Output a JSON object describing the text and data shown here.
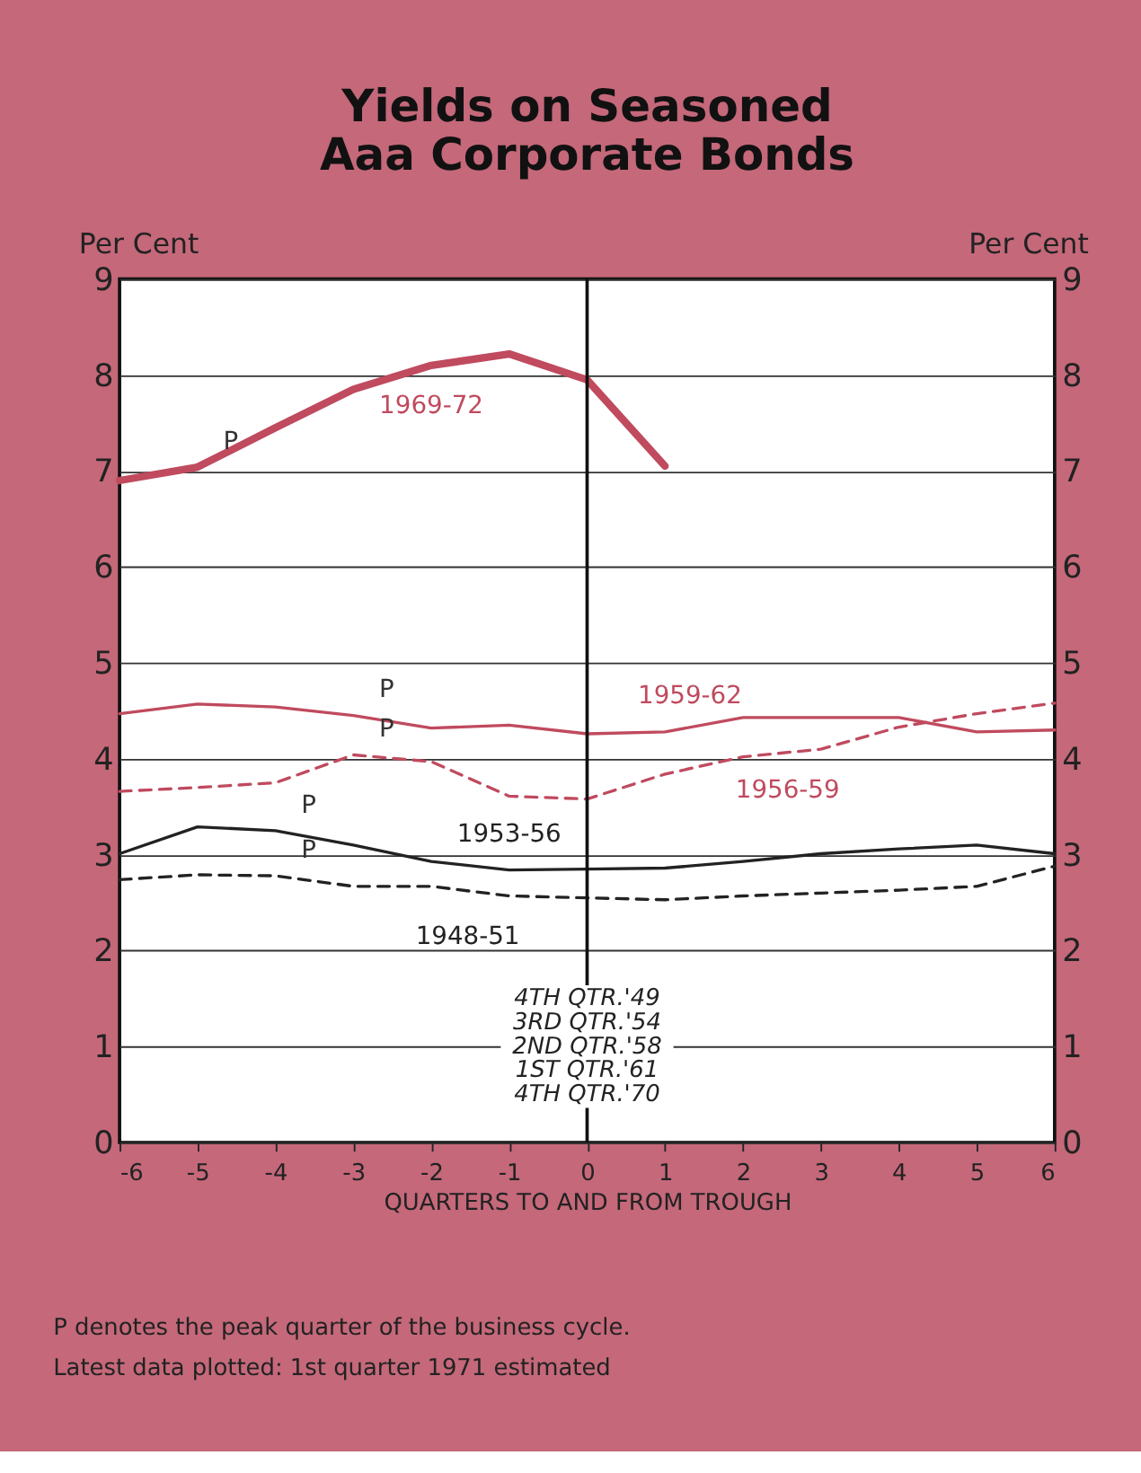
{
  "chart_data": {
    "type": "line",
    "title": "Yields on Seasoned\nAaa Corporate Bonds",
    "xlabel": "QUARTERS TO AND FROM TROUGH",
    "ylabel": "Per Cent",
    "y2label": "Per Cent",
    "x": [
      -6,
      -5,
      -4,
      -3,
      -2,
      -1,
      0,
      1,
      2,
      3,
      4,
      5,
      6
    ],
    "series": [
      {
        "name": "1969-72",
        "color": "#c04a5e",
        "line_style": "solid",
        "values": [
          6.9,
          7.04,
          7.45,
          7.85,
          8.1,
          8.22,
          7.95,
          7.05,
          null,
          null,
          null,
          null,
          null
        ]
      },
      {
        "name": "1959-62",
        "color": "#c04a5e",
        "line_style": "solid",
        "values": [
          4.47,
          4.57,
          4.54,
          4.45,
          4.32,
          4.35,
          4.26,
          4.28,
          4.43,
          4.43,
          4.43,
          4.28,
          4.3
        ]
      },
      {
        "name": "1956-59",
        "color": "#c04a5e",
        "line_style": "dashed",
        "values": [
          3.66,
          3.7,
          3.75,
          4.04,
          3.97,
          3.61,
          3.58,
          3.84,
          4.02,
          4.1,
          4.33,
          4.47,
          4.58
        ]
      },
      {
        "name": "1953-56",
        "color": "#222222",
        "line_style": "solid",
        "values": [
          3.01,
          3.29,
          3.25,
          3.1,
          2.93,
          2.84,
          2.85,
          2.86,
          2.93,
          3.01,
          3.06,
          3.1,
          3.01
        ]
      },
      {
        "name": "1948-51",
        "color": "#222222",
        "line_style": "dashed",
        "values": [
          2.74,
          2.79,
          2.78,
          2.67,
          2.67,
          2.57,
          2.55,
          2.53,
          2.57,
          2.6,
          2.63,
          2.67,
          2.88
        ]
      }
    ],
    "xlim": [
      -6,
      6
    ],
    "xticks": [
      -6,
      -5,
      -4,
      -3,
      -2,
      -1,
      0,
      1,
      2,
      3,
      4,
      5,
      6
    ],
    "ylim": [
      0,
      9
    ],
    "yticks": [
      0,
      1,
      2,
      3,
      4,
      5,
      6,
      7,
      8,
      9
    ],
    "y2lim": [
      0,
      9
    ],
    "y2ticks": [
      0,
      1,
      2,
      3,
      4,
      5,
      6,
      7,
      8,
      9
    ],
    "grid": "y",
    "marker": "none",
    "ref_lines": [
      {
        "axis": "x",
        "value": 0,
        "color": "#111111"
      }
    ],
    "annotations": [
      {
        "text": "P",
        "x": -5,
        "y": 7.04
      },
      {
        "text": "P",
        "x": -3,
        "y": 4.45
      },
      {
        "text": "P",
        "x": -3,
        "y": 4.04
      },
      {
        "text": "P",
        "x": -4,
        "y": 3.25
      },
      {
        "text": "P",
        "x": -4,
        "y": 2.78
      },
      {
        "text": "4TH QTR.'49",
        "x": 0,
        "y": 1.5
      },
      {
        "text": "3RD QTR.'54",
        "x": 0,
        "y": 1.25
      },
      {
        "text": "2ND QTR.'58",
        "x": 0,
        "y": 1.0
      },
      {
        "text": "1ST QTR.'61",
        "x": 0,
        "y": 0.75
      },
      {
        "text": "4TH QTR.'70",
        "x": 0,
        "y": 0.5
      },
      "P denotes the peak quarter of the business cycle.",
      "Latest data plotted: 1st quarter 1971 estimated"
    ]
  }
}
